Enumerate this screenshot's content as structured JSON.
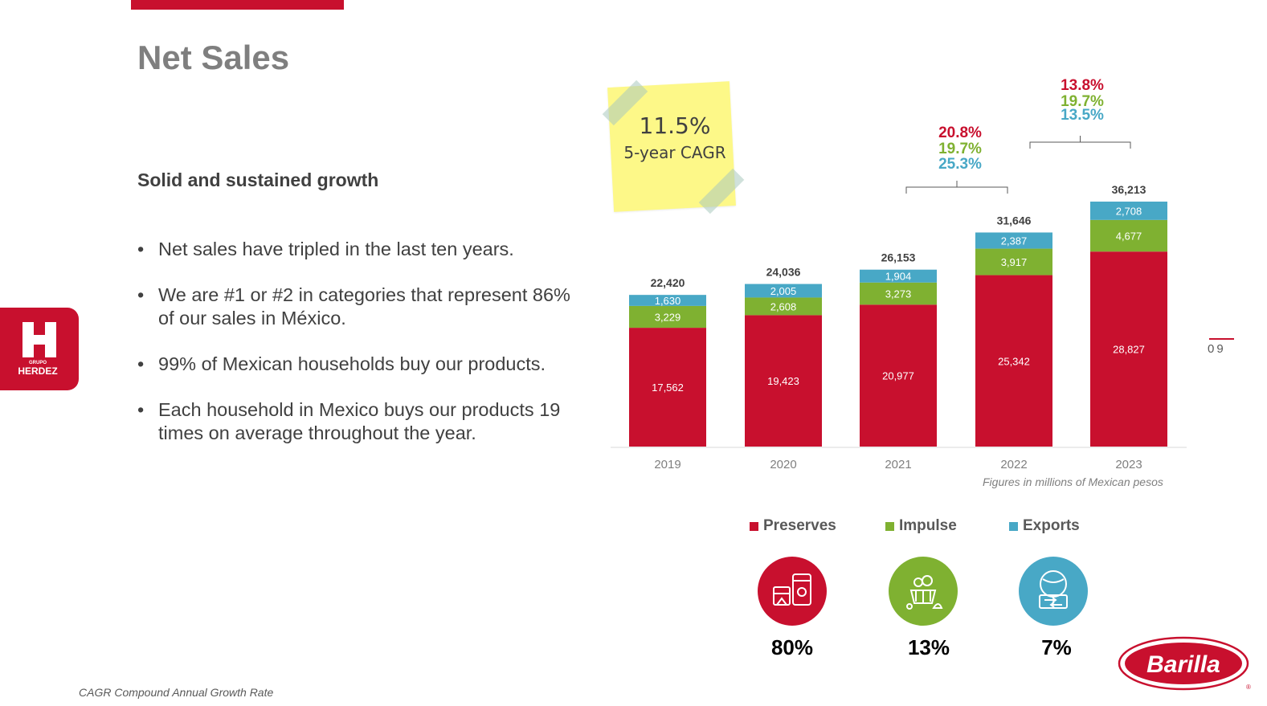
{
  "header": {
    "title": "Net Sales"
  },
  "left": {
    "subtitle": "Solid and sustained growth",
    "bullets": [
      "Net sales have tripled in the last ten years.",
      "We are #1 or #2 in categories that represent 86% of our sales in México.",
      "99% of Mexican households buy our products.",
      "Each household in Mexico buys our products 19 times on average throughout the year."
    ]
  },
  "footnote": "CAGR Compound Annual Growth Rate",
  "page_number": "09",
  "logo_herdez": {
    "line1": "GRUPO",
    "line2": "HERDEZ"
  },
  "logo_barilla": {
    "text": "Barilla"
  },
  "sticky": {
    "value": "11.5%",
    "label": "5-year CAGR"
  },
  "note": "Figures in millions of Mexican pesos",
  "growth_2021_2022": [
    "20.8%",
    "19.7%",
    "25.3%"
  ],
  "growth_2022_2023": [
    "13.8%",
    "19.7%",
    "13.5%"
  ],
  "legend": [
    {
      "name": "Preserves",
      "color": "#c8102e",
      "icon": "food-cans-icon"
    },
    {
      "name": "Impulse",
      "color": "#7fb131",
      "icon": "snacks-basket-icon"
    },
    {
      "name": "Exports",
      "color": "#48a8c6",
      "icon": "globe-exchange-icon"
    }
  ],
  "shares": [
    "80%",
    "13%",
    "7%"
  ],
  "colors": {
    "preserves": "#c8102e",
    "impulse": "#7fb131",
    "exports": "#48a8c6",
    "text": "#404040"
  },
  "chart_data": {
    "type": "bar",
    "stacked": true,
    "categories": [
      "2019",
      "2020",
      "2021",
      "2022",
      "2023"
    ],
    "series": [
      {
        "name": "Preserves",
        "values": [
          17562,
          19423,
          20977,
          25342,
          28827
        ]
      },
      {
        "name": "Impulse",
        "values": [
          3229,
          2608,
          3273,
          3917,
          4677
        ]
      },
      {
        "name": "Exports",
        "values": [
          1630,
          2005,
          1904,
          2387,
          2708
        ]
      }
    ],
    "value_labels": {
      "Preserves": [
        "17,562",
        "19,423",
        "20,977",
        "25,342",
        "28,827"
      ],
      "Impulse": [
        "3,229",
        "2,608",
        "3,273",
        "3,917",
        "4,677"
      ],
      "Exports": [
        "1,630",
        "2,005",
        "1,904",
        "2,387",
        "2,708"
      ]
    },
    "totals": [
      "22,420",
      "24,036",
      "26,153",
      "31,646",
      "36,213"
    ],
    "grid": false,
    "legend_position": "bottom"
  }
}
